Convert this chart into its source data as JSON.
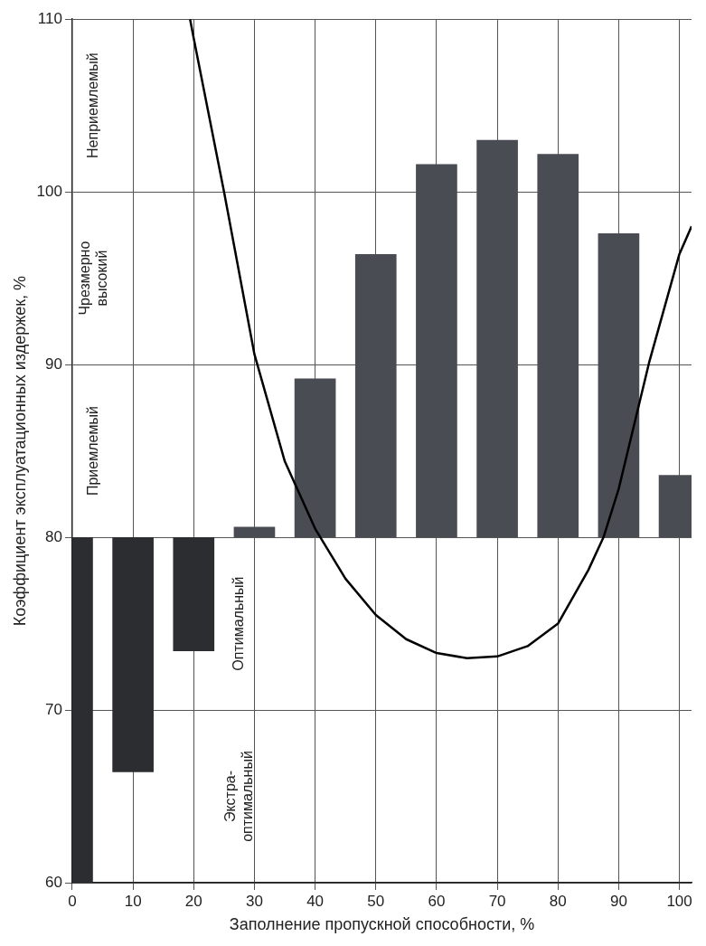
{
  "chart_data": {
    "type": "bar",
    "xlabel": "Заполнение пропускной способности, %",
    "ylabel": "Коэффициент эксплуатационных издержек, %",
    "x": [
      0,
      10,
      20,
      30,
      40,
      50,
      60,
      70,
      80,
      90,
      100
    ],
    "base": [
      80,
      80,
      80,
      80,
      80,
      80,
      80,
      80,
      80,
      80,
      80
    ],
    "values": [
      -20,
      -13.6,
      -6.6,
      0.6,
      9.2,
      16.4,
      21.6,
      23,
      22.2,
      17.6,
      3.6
    ],
    "colors": [
      "#2b2d31",
      "#2b2d31",
      "#2b2d31",
      "#4a4c54",
      "#4a4c54",
      "#4a4c54",
      "#4a4c54",
      "#4a4c54",
      "#4a4c54",
      "#4a4c54",
      "#4a4c54"
    ],
    "series": [
      {
        "type": "line",
        "color": "#000000",
        "x": [
          19.4,
          20,
          25,
          30,
          35,
          40,
          45,
          50,
          55,
          60,
          65,
          70,
          75,
          80,
          85,
          87.5,
          90,
          95,
          100,
          102
        ],
        "values": [
          110,
          108.9,
          100,
          90.6,
          84.4,
          80.5,
          77.6,
          75.5,
          74.1,
          73.3,
          73,
          73.1,
          73.7,
          75,
          78.1,
          80,
          82.8,
          90.1,
          96.4,
          98
        ]
      }
    ],
    "annotations": [
      "Неприемлемый",
      "Чрезмерно\nвысокий",
      "Приемлемый",
      "Оптимальный",
      "Экстра-\nоптимальный"
    ],
    "xlim": [
      0,
      102
    ],
    "xticks": [
      0,
      10,
      20,
      30,
      40,
      50,
      60,
      70,
      80,
      90,
      100
    ],
    "ylim": [
      60,
      110
    ],
    "yticks": [
      60,
      70,
      80,
      90,
      100,
      110
    ],
    "grid": true,
    "legend": false
  }
}
